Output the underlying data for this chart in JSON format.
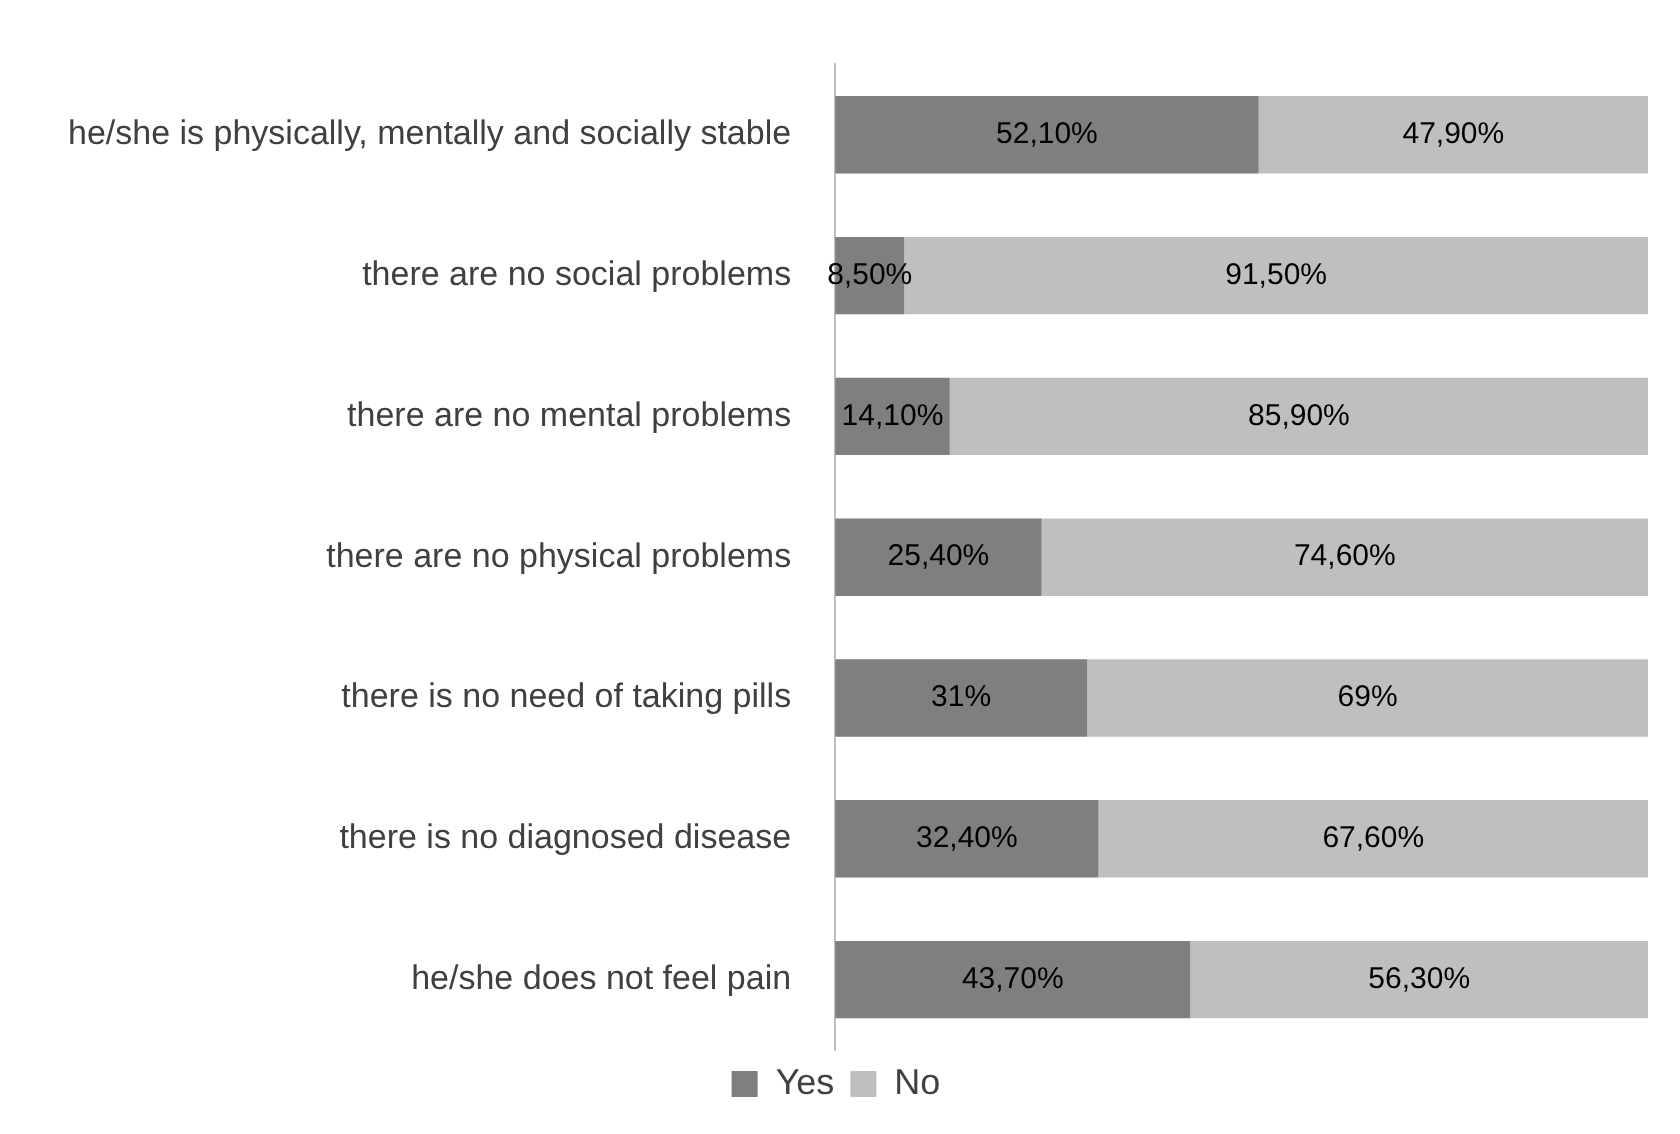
{
  "chart_data": {
    "type": "bar",
    "orientation": "horizontal",
    "stacked": true,
    "categories": [
      "he/she is physically, mentally and socially stable",
      "there are no social problems",
      "there are no mental problems",
      "there are no physical problems",
      "there is no need of taking pills",
      "there is no diagnosed disease",
      "he/she does not feel pain"
    ],
    "series": [
      {
        "name": "Yes",
        "color": "#7f7f7f",
        "values": [
          52.1,
          8.5,
          14.1,
          25.4,
          31,
          32.4,
          43.7
        ],
        "value_labels": [
          "52,10%",
          "8,50%",
          "14,10%",
          "25,40%",
          "31%",
          "32,40%",
          "43,70%"
        ]
      },
      {
        "name": "No",
        "color": "#bfbfbf",
        "values": [
          47.9,
          91.5,
          85.9,
          74.6,
          69,
          67.6,
          56.3
        ],
        "value_labels": [
          "47,90%",
          "91,50%",
          "85,90%",
          "74,60%",
          "69%",
          "67,60%",
          "56,30%"
        ]
      }
    ],
    "xlim": [
      0,
      100
    ],
    "tick_labels": "y",
    "grid": false,
    "legend": "bottom"
  }
}
